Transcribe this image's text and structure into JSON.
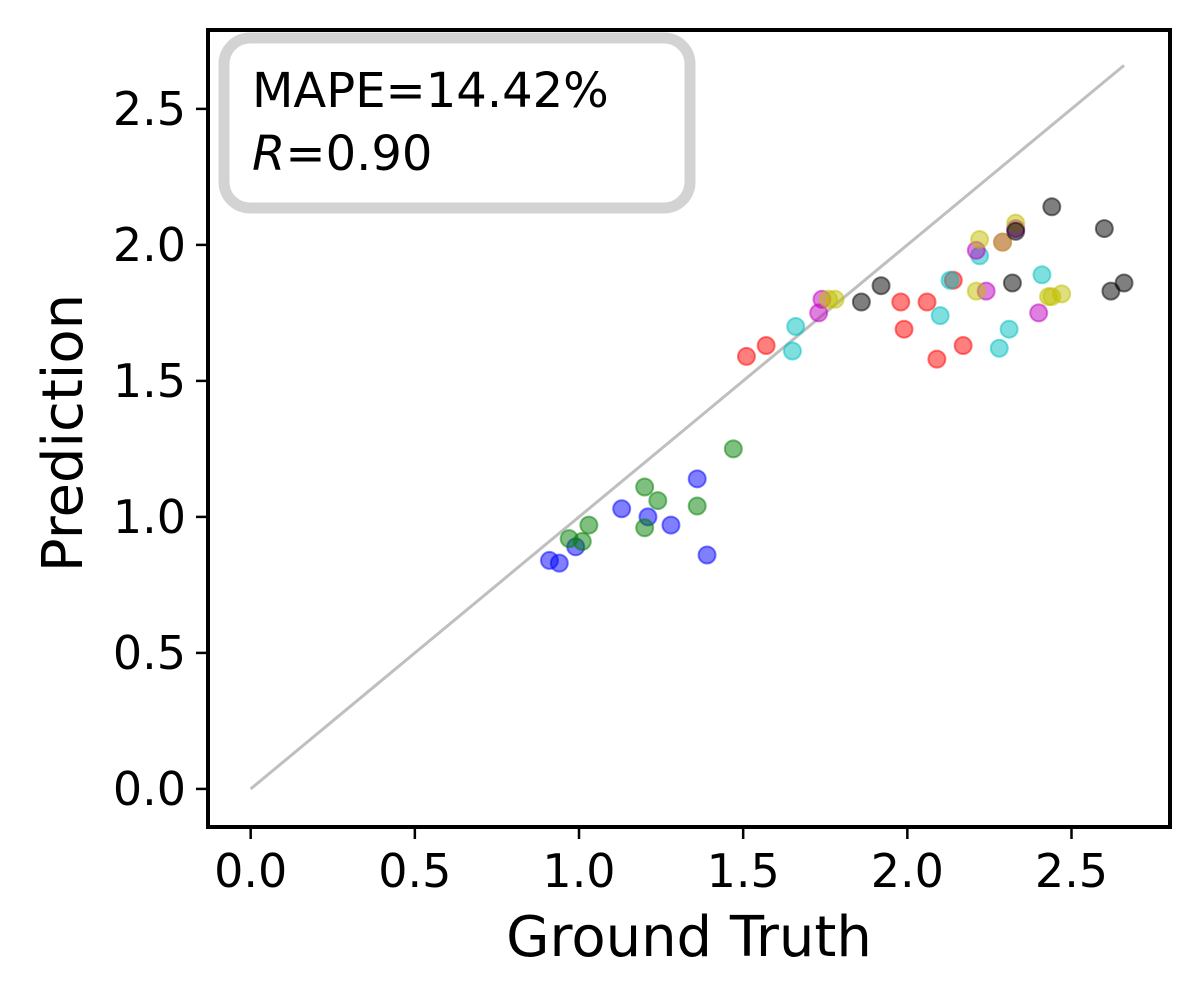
{
  "chart_data": {
    "type": "scatter",
    "xlabel": "Ground Truth",
    "ylabel": "Prediction",
    "xlim": [
      -0.13,
      2.8
    ],
    "ylim": [
      -0.14,
      2.79
    ],
    "xticks": [
      "0.0",
      "0.5",
      "1.0",
      "1.5",
      "2.0",
      "2.5"
    ],
    "yticks": [
      "0.0",
      "0.5",
      "1.0",
      "1.5",
      "2.0",
      "2.5"
    ],
    "grid": false,
    "annotation": {
      "mape": "MAPE=14.42%",
      "r_symbol": "R",
      "r_value": "=0.90",
      "placement": "top-left"
    },
    "reference_line": {
      "from": [
        0,
        0
      ],
      "to": [
        2.66,
        2.66
      ],
      "color": "#bfbfbf"
    },
    "series": [
      {
        "name": "blue",
        "color": "#0000ff",
        "points": [
          [
            0.91,
            0.84
          ],
          [
            0.94,
            0.83
          ],
          [
            0.99,
            0.89
          ],
          [
            1.13,
            1.03
          ],
          [
            1.21,
            1.0
          ],
          [
            1.28,
            0.97
          ],
          [
            1.36,
            1.14
          ],
          [
            1.39,
            0.86
          ]
        ]
      },
      {
        "name": "green",
        "color": "#008000",
        "points": [
          [
            0.97,
            0.92
          ],
          [
            1.01,
            0.91
          ],
          [
            1.03,
            0.97
          ],
          [
            1.2,
            0.96
          ],
          [
            1.2,
            1.11
          ],
          [
            1.24,
            1.06
          ],
          [
            1.36,
            1.04
          ],
          [
            1.47,
            1.25
          ]
        ]
      },
      {
        "name": "red",
        "color": "#ff0000",
        "points": [
          [
            1.51,
            1.59
          ],
          [
            1.57,
            1.63
          ],
          [
            1.98,
            1.79
          ],
          [
            1.99,
            1.69
          ],
          [
            2.06,
            1.79
          ],
          [
            2.09,
            1.58
          ],
          [
            2.14,
            1.87
          ],
          [
            2.17,
            1.63
          ]
        ]
      },
      {
        "name": "cyan",
        "color": "#00bfbf",
        "points": [
          [
            1.65,
            1.61
          ],
          [
            1.66,
            1.7
          ],
          [
            2.1,
            1.74
          ],
          [
            2.13,
            1.87
          ],
          [
            2.22,
            1.96
          ],
          [
            2.28,
            1.62
          ],
          [
            2.31,
            1.69
          ],
          [
            2.41,
            1.89
          ]
        ]
      },
      {
        "name": "magenta",
        "color": "#bf00bf",
        "points": [
          [
            1.73,
            1.75
          ],
          [
            1.74,
            1.8
          ],
          [
            2.21,
            1.98
          ],
          [
            2.24,
            1.83
          ],
          [
            2.29,
            2.01
          ],
          [
            2.33,
            2.06
          ],
          [
            2.4,
            1.75
          ]
        ]
      },
      {
        "name": "olive",
        "color": "#bfbf00",
        "points": [
          [
            1.76,
            1.8
          ],
          [
            1.78,
            1.8
          ],
          [
            2.21,
            1.83
          ],
          [
            2.22,
            2.02
          ],
          [
            2.29,
            2.01
          ],
          [
            2.33,
            2.08
          ],
          [
            2.43,
            1.81
          ],
          [
            2.44,
            1.81
          ],
          [
            2.47,
            1.82
          ]
        ]
      },
      {
        "name": "black",
        "color": "#000000",
        "points": [
          [
            1.86,
            1.79
          ],
          [
            1.92,
            1.85
          ],
          [
            2.32,
            1.86
          ],
          [
            2.33,
            2.05
          ],
          [
            2.44,
            2.14
          ],
          [
            2.6,
            2.06
          ],
          [
            2.62,
            1.83
          ],
          [
            2.66,
            1.86
          ]
        ]
      }
    ]
  }
}
